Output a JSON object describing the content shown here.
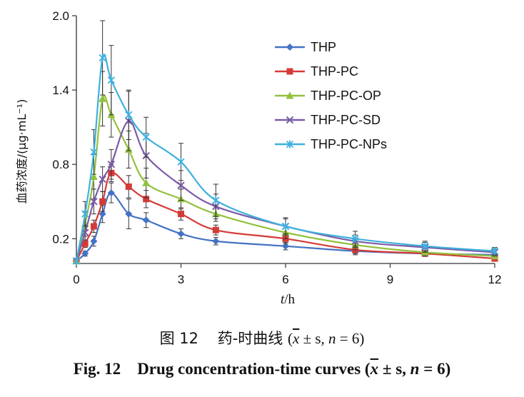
{
  "chart_data": {
    "type": "line",
    "ylabel": "血药浓度/(μg·mL⁻¹)",
    "xlabel_var": "t",
    "xlabel_unit": "/h",
    "xlim": [
      0,
      12
    ],
    "ylim": [
      0,
      2.0
    ],
    "xticks": [
      0,
      3,
      6,
      9,
      12
    ],
    "yticks": [
      0.2,
      0.8,
      1.4,
      2.0
    ],
    "ytick_labels": [
      "0.2",
      "0.8",
      "1.4",
      "2.0"
    ],
    "legend_position": "top-right",
    "series": [
      {
        "name": "THP",
        "color": "#4472C4",
        "marker": "diamond",
        "x": [
          0,
          0.25,
          0.5,
          0.75,
          1,
          1.5,
          2,
          3,
          4,
          6,
          8,
          10,
          12
        ],
        "y": [
          0.02,
          0.08,
          0.18,
          0.4,
          0.57,
          0.4,
          0.35,
          0.24,
          0.18,
          0.14,
          0.1,
          0.08,
          0.07
        ],
        "err": [
          0,
          0.02,
          0.04,
          0.07,
          0.08,
          0.12,
          0.06,
          0.04,
          0.03,
          0.03,
          0.03,
          0.02,
          0.01
        ]
      },
      {
        "name": "THP-PC",
        "color": "#D43B36",
        "marker": "square",
        "x": [
          0,
          0.25,
          0.5,
          0.75,
          1,
          1.5,
          2,
          3,
          4,
          6,
          8,
          10,
          12
        ],
        "y": [
          0.02,
          0.16,
          0.3,
          0.5,
          0.73,
          0.62,
          0.52,
          0.4,
          0.27,
          0.2,
          0.11,
          0.08,
          0.04
        ],
        "err": [
          0,
          0.03,
          0.05,
          0.08,
          0.07,
          0.09,
          0.07,
          0.05,
          0.04,
          0.04,
          0.03,
          0.02,
          0.01
        ]
      },
      {
        "name": "THP-PC-OP",
        "color": "#92C13E",
        "marker": "triangle",
        "x": [
          0,
          0.25,
          0.5,
          0.75,
          1,
          1.5,
          2,
          3,
          4,
          6,
          8,
          10,
          12
        ],
        "y": [
          0.02,
          0.32,
          0.7,
          1.33,
          1.2,
          0.92,
          0.65,
          0.52,
          0.4,
          0.25,
          0.15,
          0.09,
          0.06
        ],
        "err": [
          0,
          0.1,
          0.18,
          0.22,
          0.18,
          0.15,
          0.12,
          0.08,
          0.06,
          0.05,
          0.04,
          0.03,
          0.02
        ]
      },
      {
        "name": "THP-PC-SD",
        "color": "#7B5BA7",
        "marker": "x",
        "x": [
          0,
          0.25,
          0.5,
          0.75,
          1,
          1.5,
          2,
          3,
          4,
          6,
          8,
          10,
          12
        ],
        "y": [
          0.02,
          0.25,
          0.5,
          0.68,
          0.8,
          1.15,
          0.87,
          0.63,
          0.46,
          0.3,
          0.18,
          0.13,
          0.09
        ],
        "err": [
          0,
          0.06,
          0.1,
          0.1,
          0.12,
          0.24,
          0.18,
          0.12,
          0.1,
          0.06,
          0.05,
          0.04,
          0.03
        ]
      },
      {
        "name": "THP-PC-NPs",
        "color": "#3FB0DE",
        "marker": "star",
        "x": [
          0,
          0.25,
          0.5,
          0.75,
          1,
          1.5,
          2,
          3,
          4,
          6,
          8,
          10,
          12
        ],
        "y": [
          0.02,
          0.4,
          0.9,
          1.66,
          1.48,
          1.2,
          1.02,
          0.82,
          0.51,
          0.3,
          0.2,
          0.14,
          0.1
        ],
        "err": [
          0,
          0.1,
          0.18,
          0.3,
          0.28,
          0.2,
          0.16,
          0.15,
          0.13,
          0.07,
          0.06,
          0.04,
          0.03
        ]
      }
    ]
  },
  "caption": {
    "cn_fig": "图 12",
    "cn_title": "药-时曲线",
    "en_fig": "Fig. 12",
    "en_title": "Drug concentration-time curves",
    "mean_symbol": "x",
    "pm_s": "± s",
    "n_var": "n",
    "n_eq": "= 6"
  }
}
